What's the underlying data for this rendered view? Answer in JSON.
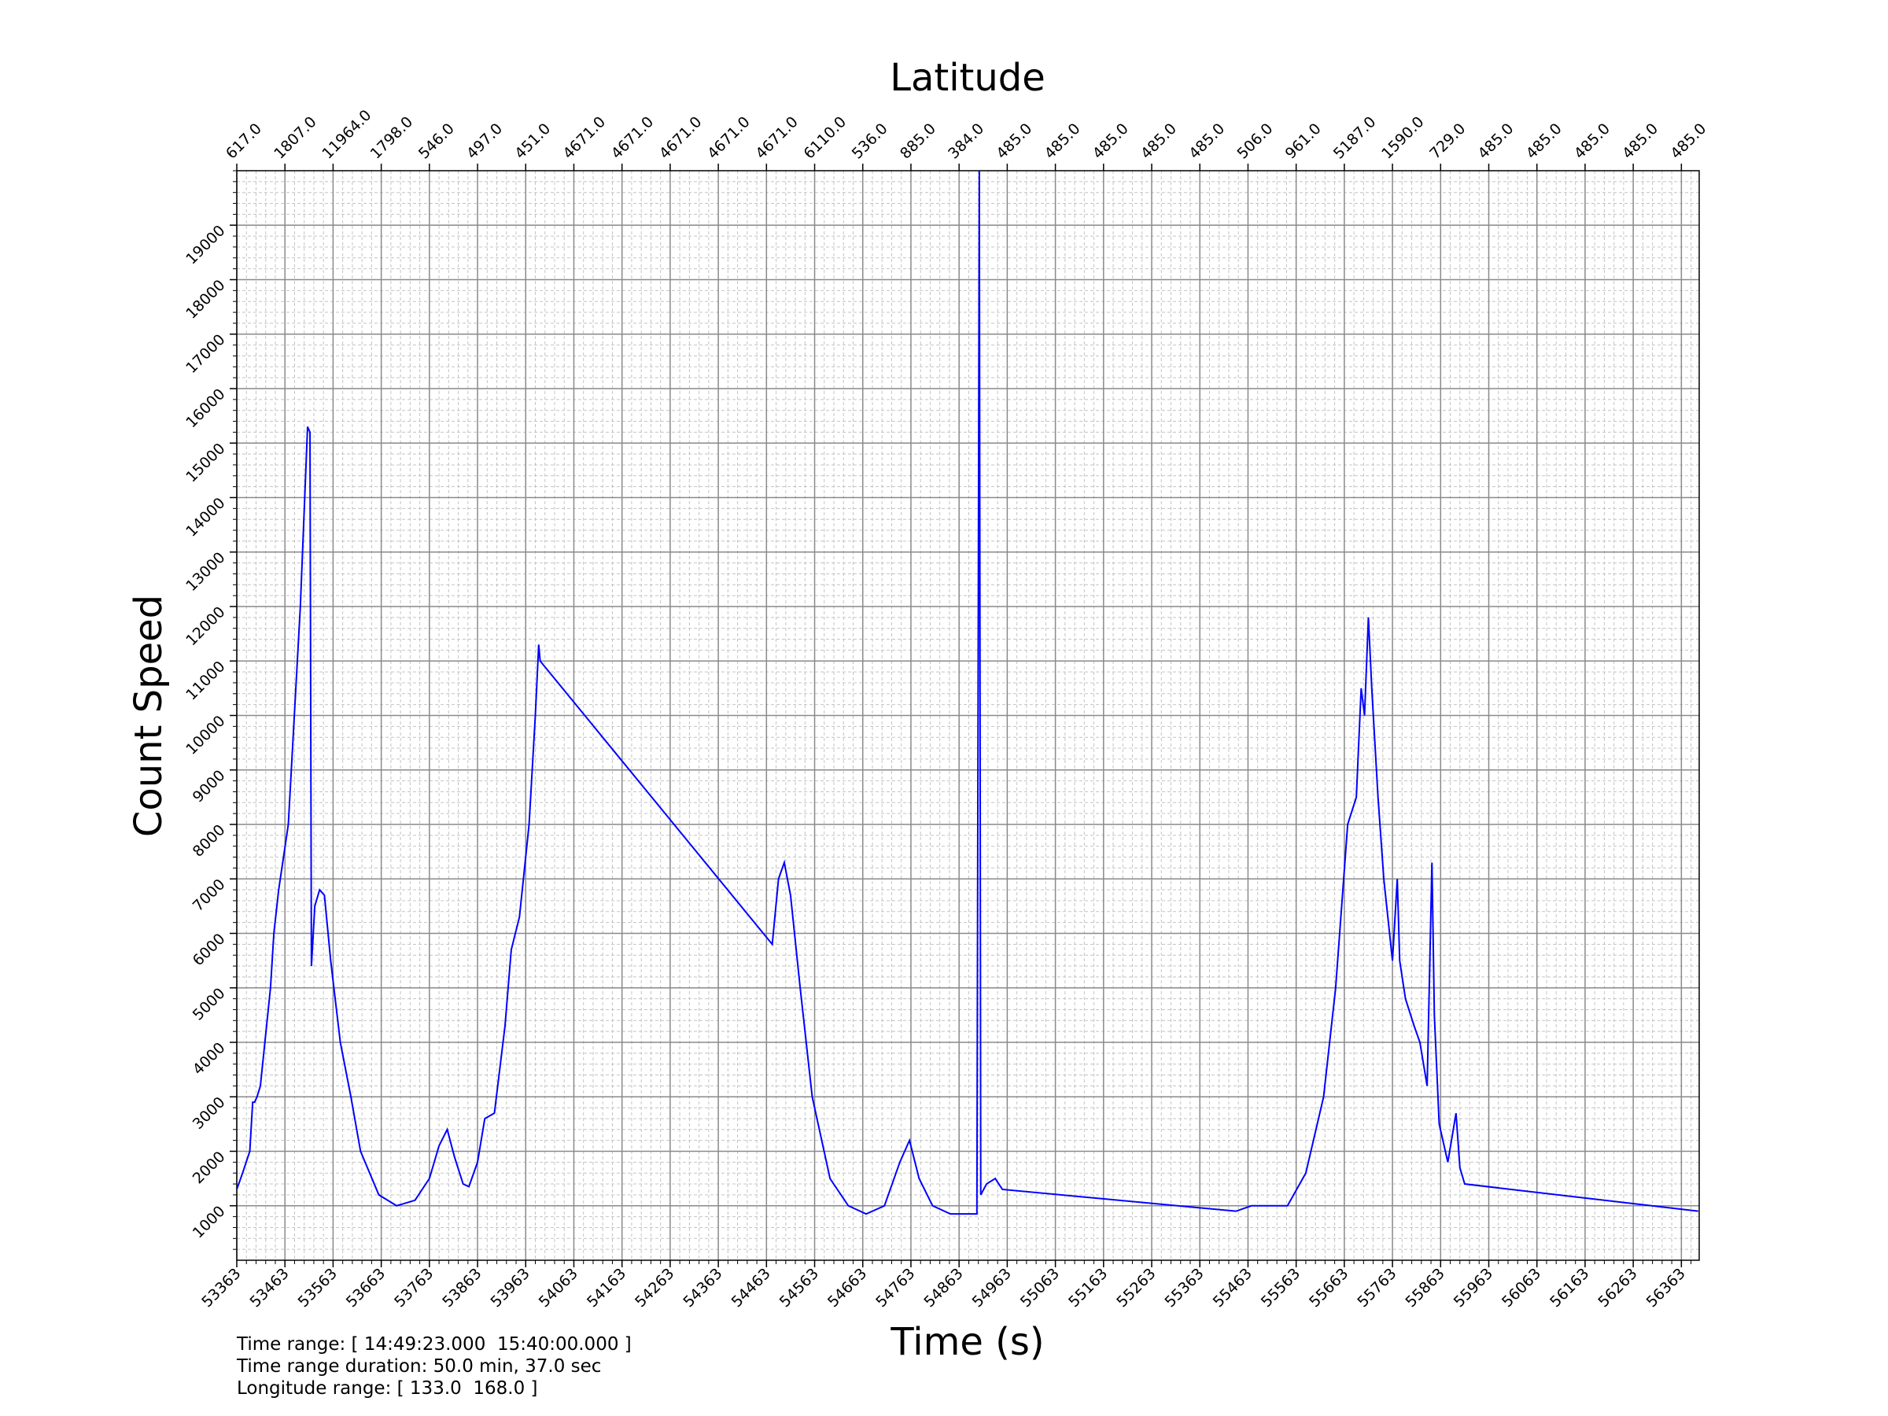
{
  "chart_data": {
    "type": "line",
    "xlabel": "Time (s)",
    "ylabel": "Count Speed",
    "x2label": "Latitude",
    "color": "#0000ff",
    "grid": true,
    "minor_grid": true,
    "xlim": [
      53363,
      56400
    ],
    "ylim": [
      0,
      20000
    ],
    "xticks": [
      53363,
      53463,
      53563,
      53663,
      53763,
      53863,
      53963,
      54063,
      54163,
      54263,
      54363,
      54463,
      54563,
      54663,
      54763,
      54863,
      54963,
      55063,
      55163,
      55263,
      55363,
      55463,
      55563,
      55663,
      55763,
      55863,
      55963,
      56063,
      56163,
      56263,
      56363
    ],
    "yticks": [
      1000,
      2000,
      3000,
      4000,
      5000,
      6000,
      7000,
      8000,
      9000,
      10000,
      11000,
      12000,
      13000,
      14000,
      15000,
      16000,
      17000,
      18000,
      19000
    ],
    "x2ticks": [
      {
        "value": 53363,
        "label": "617.0"
      },
      {
        "value": 53463,
        "label": "1807.0"
      },
      {
        "value": 53563,
        "label": "11964.0"
      },
      {
        "value": 53663,
        "label": "1798.0"
      },
      {
        "value": 53763,
        "label": "546.0"
      },
      {
        "value": 53863,
        "label": "497.0"
      },
      {
        "value": 53963,
        "label": "451.0"
      },
      {
        "value": 54063,
        "label": "4671.0"
      },
      {
        "value": 54163,
        "label": "4671.0"
      },
      {
        "value": 54263,
        "label": "4671.0"
      },
      {
        "value": 54363,
        "label": "4671.0"
      },
      {
        "value": 54463,
        "label": "4671.0"
      },
      {
        "value": 54563,
        "label": "6110.0"
      },
      {
        "value": 54663,
        "label": "536.0"
      },
      {
        "value": 54763,
        "label": "885.0"
      },
      {
        "value": 54863,
        "label": "384.0"
      },
      {
        "value": 54963,
        "label": "485.0"
      },
      {
        "value": 55063,
        "label": "485.0"
      },
      {
        "value": 55163,
        "label": "485.0"
      },
      {
        "value": 55263,
        "label": "485.0"
      },
      {
        "value": 55363,
        "label": "485.0"
      },
      {
        "value": 55463,
        "label": "506.0"
      },
      {
        "value": 55563,
        "label": "961.0"
      },
      {
        "value": 55663,
        "label": "5187.0"
      },
      {
        "value": 55763,
        "label": "1590.0"
      },
      {
        "value": 55863,
        "label": "729.0"
      },
      {
        "value": 55963,
        "label": "485.0"
      },
      {
        "value": 56063,
        "label": "485.0"
      },
      {
        "value": 56163,
        "label": "485.0"
      },
      {
        "value": 56263,
        "label": "485.0"
      },
      {
        "value": 56363,
        "label": "485.0"
      }
    ],
    "x": [
      53363,
      53375,
      53390,
      53396,
      53400,
      53405,
      53412,
      53433,
      53440,
      53450,
      53470,
      53495,
      53510,
      53515,
      53518,
      53525,
      53535,
      53545,
      53558,
      53578,
      53600,
      53620,
      53658,
      53695,
      53733,
      53763,
      53783,
      53800,
      53815,
      53833,
      53845,
      53863,
      53878,
      53898,
      53920,
      53933,
      53950,
      53970,
      53983,
      53990,
      53993,
      54475,
      54488,
      54500,
      54513,
      54533,
      54558,
      54595,
      54633,
      54670,
      54708,
      54740,
      54760,
      54780,
      54808,
      54845,
      54900,
      54905,
      54908,
      54920,
      54938,
      54953,
      55438,
      55470,
      55545,
      55583,
      55620,
      55645,
      55670,
      55688,
      55698,
      55705,
      55713,
      55720,
      55733,
      55745,
      55763,
      55773,
      55778,
      55790,
      55808,
      55820,
      55835,
      55845,
      55850,
      55860,
      55878,
      55895,
      55903,
      55913,
      56398
    ],
    "values": [
      1300,
      1600,
      2000,
      2900,
      2900,
      3000,
      3200,
      5000,
      6000,
      6800,
      8000,
      12000,
      15300,
      15200,
      5400,
      6500,
      6800,
      6700,
      5500,
      4000,
      3000,
      2000,
      1200,
      1000,
      1100,
      1500,
      2100,
      2400,
      1900,
      1400,
      1350,
      1800,
      2600,
      2700,
      4300,
      5700,
      6300,
      8000,
      10000,
      11300,
      11000,
      5800,
      7000,
      7300,
      6700,
      5000,
      3000,
      1500,
      1000,
      850,
      1000,
      1800,
      2200,
      1500,
      1000,
      850,
      850,
      20000,
      1200,
      1400,
      1500,
      1300,
      900,
      1000,
      1000,
      1600,
      3000,
      5000,
      8000,
      8500,
      10500,
      10000,
      11800,
      10500,
      8500,
      7000,
      5500,
      7000,
      5500,
      4800,
      4300,
      4000,
      3200,
      7300,
      4500,
      2500,
      1800,
      2700,
      1700,
      1400,
      900
    ],
    "footer": [
      "Time range: [ 14:49:23.000  15:40:00.000 ]",
      "Time range duration: 50.0 min, 37.0 sec",
      "Longitude range: [ 133.0  168.0 ]"
    ]
  }
}
